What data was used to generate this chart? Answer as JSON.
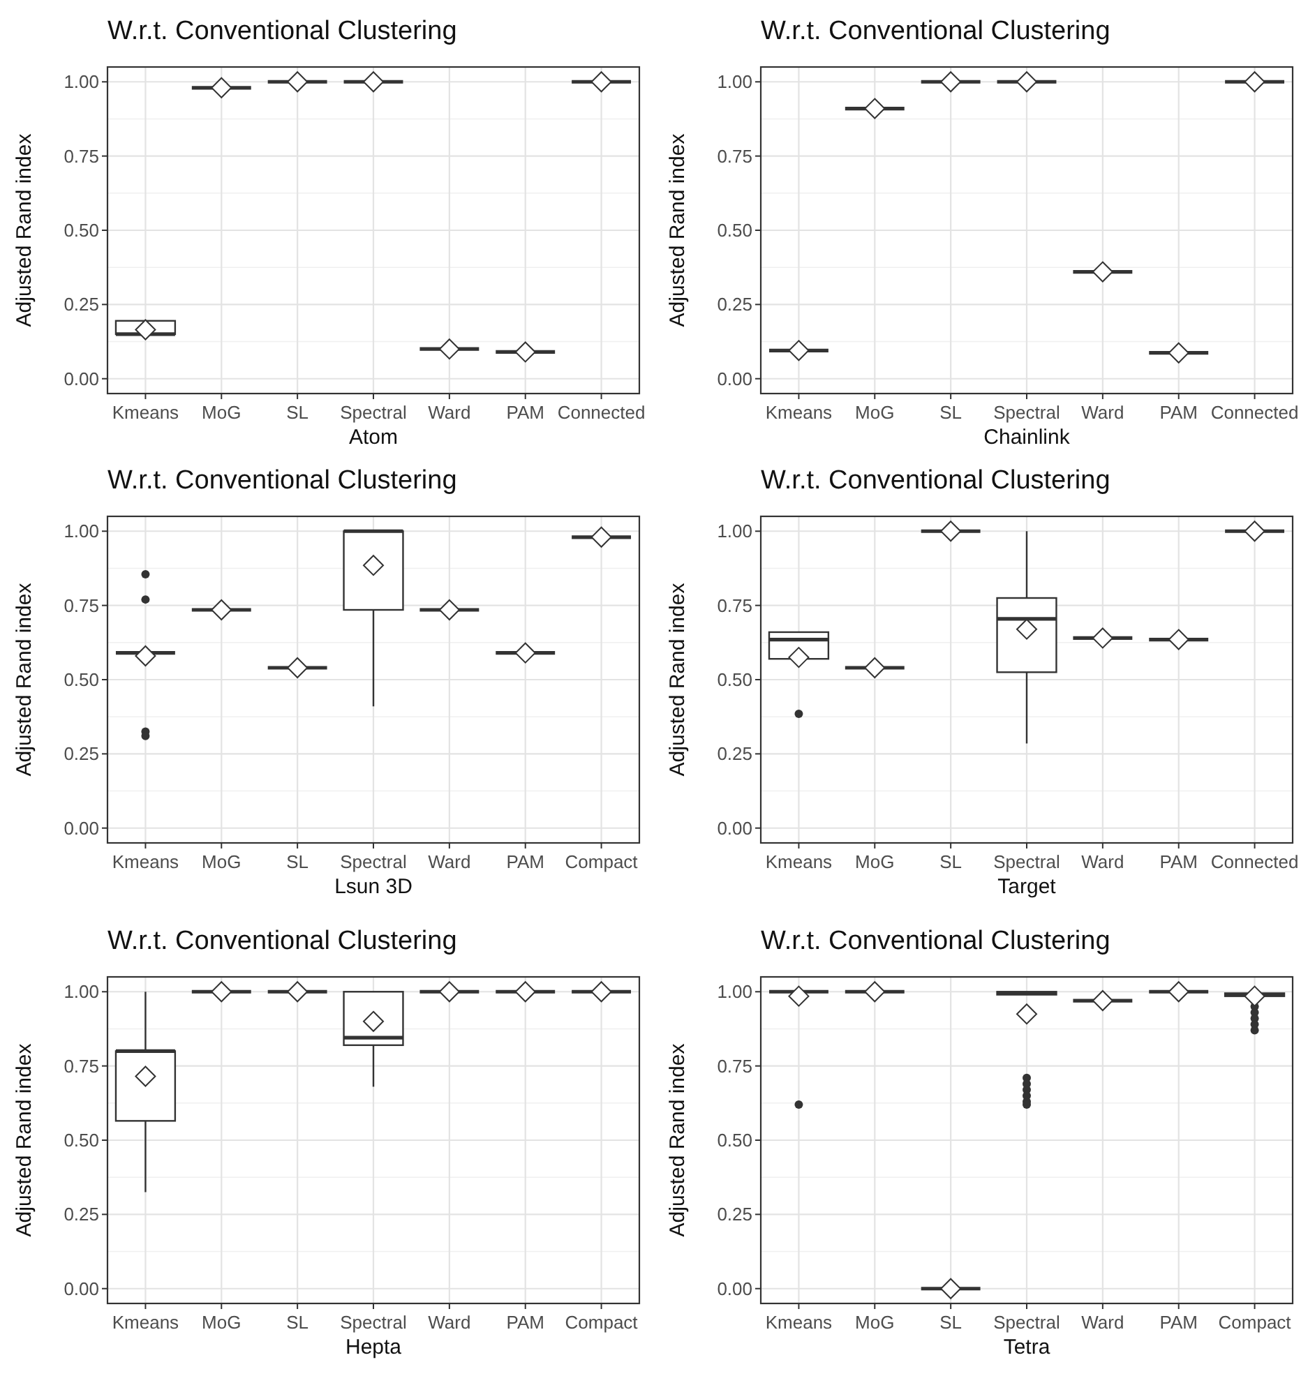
{
  "chart_data": [
    {
      "type": "box",
      "title": "W.r.t. Conventional Clustering",
      "xlabel": "Atom",
      "ylabel": "Adjusted Rand index",
      "categories": [
        "Kmeans",
        "MoG",
        "SL",
        "Spectral",
        "Ward",
        "PAM",
        "Connected"
      ],
      "ylim": [
        -0.05,
        1.05
      ],
      "yticks": [
        {
          "value": 0,
          "label": "0.00"
        },
        {
          "value": 0.25,
          "label": "0.25"
        },
        {
          "value": 0.5,
          "label": "0.50"
        },
        {
          "value": 0.75,
          "label": "0.75"
        },
        {
          "value": 1,
          "label": "1.00"
        }
      ],
      "grid": true,
      "marker": "diamond",
      "boxes": [
        {
          "low": 0.15,
          "q1": 0.15,
          "median": 0.15,
          "q3": 0.195,
          "high": 0.195,
          "mean": 0.165
        },
        {
          "low": 0.98,
          "q1": 0.98,
          "median": 0.98,
          "q3": 0.98,
          "high": 0.98,
          "mean": 0.98
        },
        {
          "low": 1,
          "q1": 1,
          "median": 1,
          "q3": 1,
          "high": 1,
          "mean": 1
        },
        {
          "low": 1,
          "q1": 1,
          "median": 1,
          "q3": 1,
          "high": 1,
          "mean": 1
        },
        {
          "low": 0.1,
          "q1": 0.1,
          "median": 0.1,
          "q3": 0.1,
          "high": 0.1,
          "mean": 0.1
        },
        {
          "low": 0.09,
          "q1": 0.09,
          "median": 0.09,
          "q3": 0.09,
          "high": 0.09,
          "mean": 0.09
        },
        {
          "low": 1,
          "q1": 1,
          "median": 1,
          "q3": 1,
          "high": 1,
          "mean": 1
        }
      ]
    },
    {
      "type": "box",
      "title": "W.r.t. Conventional Clustering",
      "xlabel": "Chainlink",
      "ylabel": "Adjusted Rand index",
      "categories": [
        "Kmeans",
        "MoG",
        "SL",
        "Spectral",
        "Ward",
        "PAM",
        "Connected"
      ],
      "ylim": [
        -0.05,
        1.05
      ],
      "yticks": [
        {
          "value": 0,
          "label": "0.00"
        },
        {
          "value": 0.25,
          "label": "0.25"
        },
        {
          "value": 0.5,
          "label": "0.50"
        },
        {
          "value": 0.75,
          "label": "0.75"
        },
        {
          "value": 1,
          "label": "1.00"
        }
      ],
      "grid": true,
      "marker": "diamond",
      "boxes": [
        {
          "low": 0.095,
          "q1": 0.095,
          "median": 0.095,
          "q3": 0.095,
          "high": 0.095,
          "mean": 0.095
        },
        {
          "low": 0.91,
          "q1": 0.91,
          "median": 0.91,
          "q3": 0.91,
          "high": 0.91,
          "mean": 0.91
        },
        {
          "low": 1,
          "q1": 1,
          "median": 1,
          "q3": 1,
          "high": 1,
          "mean": 1
        },
        {
          "low": 1,
          "q1": 1,
          "median": 1,
          "q3": 1,
          "high": 1,
          "mean": 1
        },
        {
          "low": 0.36,
          "q1": 0.36,
          "median": 0.36,
          "q3": 0.36,
          "high": 0.36,
          "mean": 0.36
        },
        {
          "low": 0.087,
          "q1": 0.087,
          "median": 0.087,
          "q3": 0.087,
          "high": 0.087,
          "mean": 0.087
        },
        {
          "low": 1,
          "q1": 1,
          "median": 1,
          "q3": 1,
          "high": 1,
          "mean": 1
        }
      ]
    },
    {
      "type": "box",
      "title": "W.r.t. Conventional Clustering",
      "xlabel": "Lsun 3D",
      "ylabel": "Adjusted Rand index",
      "categories": [
        "Kmeans",
        "MoG",
        "SL",
        "Spectral",
        "Ward",
        "PAM",
        "Compact"
      ],
      "ylim": [
        -0.05,
        1.05
      ],
      "yticks": [
        {
          "value": 0,
          "label": "0.00"
        },
        {
          "value": 0.25,
          "label": "0.25"
        },
        {
          "value": 0.5,
          "label": "0.50"
        },
        {
          "value": 0.75,
          "label": "0.75"
        },
        {
          "value": 1,
          "label": "1.00"
        }
      ],
      "grid": true,
      "marker": "diamond",
      "boxes": [
        {
          "low": 0.59,
          "q1": 0.59,
          "median": 0.59,
          "q3": 0.59,
          "high": 0.59,
          "mean": 0.58,
          "outliers": [
            0.855,
            0.77,
            0.325,
            0.31
          ]
        },
        {
          "low": 0.735,
          "q1": 0.735,
          "median": 0.735,
          "q3": 0.735,
          "high": 0.735,
          "mean": 0.735
        },
        {
          "low": 0.54,
          "q1": 0.54,
          "median": 0.54,
          "q3": 0.54,
          "high": 0.54,
          "mean": 0.54
        },
        {
          "low": 0.41,
          "q1": 0.735,
          "median": 1,
          "q3": 1,
          "high": 1,
          "mean": 0.885
        },
        {
          "low": 0.735,
          "q1": 0.735,
          "median": 0.735,
          "q3": 0.735,
          "high": 0.735,
          "mean": 0.735
        },
        {
          "low": 0.59,
          "q1": 0.59,
          "median": 0.59,
          "q3": 0.59,
          "high": 0.59,
          "mean": 0.59
        },
        {
          "low": 0.98,
          "q1": 0.98,
          "median": 0.98,
          "q3": 0.98,
          "high": 0.98,
          "mean": 0.98
        }
      ]
    },
    {
      "type": "box",
      "title": "W.r.t. Conventional Clustering",
      "xlabel": "Target",
      "ylabel": "Adjusted Rand index",
      "categories": [
        "Kmeans",
        "MoG",
        "SL",
        "Spectral",
        "Ward",
        "PAM",
        "Connected"
      ],
      "ylim": [
        -0.05,
        1.05
      ],
      "yticks": [
        {
          "value": 0,
          "label": "0.00"
        },
        {
          "value": 0.25,
          "label": "0.25"
        },
        {
          "value": 0.5,
          "label": "0.50"
        },
        {
          "value": 0.75,
          "label": "0.75"
        },
        {
          "value": 1,
          "label": "1.00"
        }
      ],
      "grid": true,
      "marker": "diamond",
      "boxes": [
        {
          "low": 0.57,
          "q1": 0.57,
          "median": 0.635,
          "q3": 0.66,
          "high": 0.66,
          "mean": 0.575,
          "outliers": [
            0.385
          ]
        },
        {
          "low": 0.54,
          "q1": 0.54,
          "median": 0.54,
          "q3": 0.54,
          "high": 0.54,
          "mean": 0.54
        },
        {
          "low": 1,
          "q1": 1,
          "median": 1,
          "q3": 1,
          "high": 1,
          "mean": 1
        },
        {
          "low": 0.285,
          "q1": 0.525,
          "median": 0.705,
          "q3": 0.775,
          "high": 1,
          "mean": 0.67
        },
        {
          "low": 0.64,
          "q1": 0.64,
          "median": 0.64,
          "q3": 0.64,
          "high": 0.64,
          "mean": 0.64
        },
        {
          "low": 0.635,
          "q1": 0.635,
          "median": 0.635,
          "q3": 0.635,
          "high": 0.635,
          "mean": 0.635
        },
        {
          "low": 1,
          "q1": 1,
          "median": 1,
          "q3": 1,
          "high": 1,
          "mean": 1
        }
      ]
    },
    {
      "type": "box",
      "title": "W.r.t. Conventional Clustering",
      "xlabel": "Hepta",
      "ylabel": "Adjusted Rand index",
      "categories": [
        "Kmeans",
        "MoG",
        "SL",
        "Spectral",
        "Ward",
        "PAM",
        "Compact"
      ],
      "ylim": [
        -0.05,
        1.05
      ],
      "yticks": [
        {
          "value": 0,
          "label": "0.00"
        },
        {
          "value": 0.25,
          "label": "0.25"
        },
        {
          "value": 0.5,
          "label": "0.50"
        },
        {
          "value": 0.75,
          "label": "0.75"
        },
        {
          "value": 1,
          "label": "1.00"
        }
      ],
      "grid": true,
      "marker": "diamond",
      "boxes": [
        {
          "low": 0.325,
          "q1": 0.565,
          "median": 0.8,
          "q3": 0.8,
          "high": 1,
          "mean": 0.715
        },
        {
          "low": 1,
          "q1": 1,
          "median": 1,
          "q3": 1,
          "high": 1,
          "mean": 1
        },
        {
          "low": 1,
          "q1": 1,
          "median": 1,
          "q3": 1,
          "high": 1,
          "mean": 1
        },
        {
          "low": 0.68,
          "q1": 0.82,
          "median": 0.845,
          "q3": 1,
          "high": 1,
          "mean": 0.9
        },
        {
          "low": 1,
          "q1": 1,
          "median": 1,
          "q3": 1,
          "high": 1,
          "mean": 1
        },
        {
          "low": 1,
          "q1": 1,
          "median": 1,
          "q3": 1,
          "high": 1,
          "mean": 1
        },
        {
          "low": 1,
          "q1": 1,
          "median": 1,
          "q3": 1,
          "high": 1,
          "mean": 1
        }
      ]
    },
    {
      "type": "box",
      "title": "W.r.t. Conventional Clustering",
      "xlabel": "Tetra",
      "ylabel": "Adjusted Rand index",
      "categories": [
        "Kmeans",
        "MoG",
        "SL",
        "Spectral",
        "Ward",
        "PAM",
        "Compact"
      ],
      "ylim": [
        -0.05,
        1.05
      ],
      "yticks": [
        {
          "value": 0,
          "label": "0.00"
        },
        {
          "value": 0.25,
          "label": "0.25"
        },
        {
          "value": 0.5,
          "label": "0.50"
        },
        {
          "value": 0.75,
          "label": "0.75"
        },
        {
          "value": 1,
          "label": "1.00"
        }
      ],
      "grid": true,
      "marker": "diamond",
      "boxes": [
        {
          "low": 1,
          "q1": 1,
          "median": 1,
          "q3": 1,
          "high": 1,
          "mean": 0.985,
          "outliers": [
            0.62
          ]
        },
        {
          "low": 1,
          "q1": 1,
          "median": 1,
          "q3": 1,
          "high": 1,
          "mean": 1
        },
        {
          "low": 0,
          "q1": 0,
          "median": 0,
          "q3": 0,
          "high": 0,
          "mean": 0
        },
        {
          "low": 0.99,
          "q1": 0.99,
          "median": 0.995,
          "q3": 1,
          "high": 1,
          "mean": 0.925,
          "outliers": [
            0.71,
            0.69,
            0.67,
            0.65,
            0.63,
            0.62
          ]
        },
        {
          "low": 0.97,
          "q1": 0.97,
          "median": 0.97,
          "q3": 0.97,
          "high": 0.97,
          "mean": 0.97
        },
        {
          "low": 1,
          "q1": 1,
          "median": 1,
          "q3": 1,
          "high": 1,
          "mean": 1
        },
        {
          "low": 0.985,
          "q1": 0.985,
          "median": 0.99,
          "q3": 0.995,
          "high": 0.995,
          "mean": 0.985,
          "outliers": [
            0.95,
            0.93,
            0.91,
            0.89,
            0.87
          ]
        }
      ]
    }
  ]
}
